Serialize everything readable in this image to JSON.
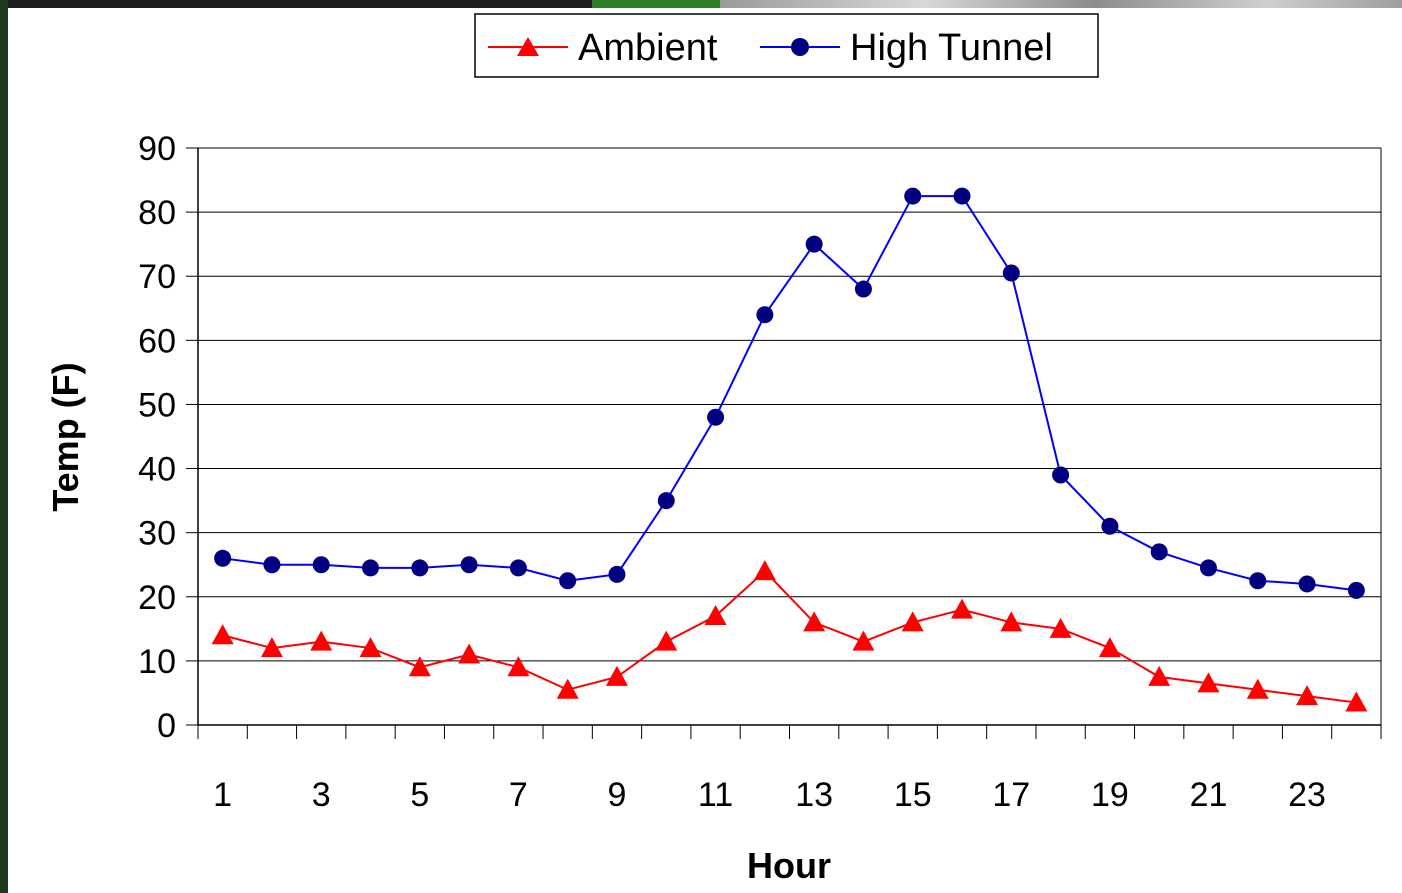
{
  "chart_data": {
    "type": "line",
    "xlabel": "Hour",
    "ylabel": "Temp (F)",
    "x": [
      1,
      2,
      3,
      4,
      5,
      6,
      7,
      8,
      9,
      10,
      11,
      12,
      13,
      14,
      15,
      16,
      17,
      18,
      19,
      20,
      21,
      22,
      23,
      24
    ],
    "x_tick_labels": [
      "1",
      "3",
      "5",
      "7",
      "9",
      "11",
      "13",
      "15",
      "17",
      "19",
      "21",
      "23"
    ],
    "ylim": [
      0,
      90
    ],
    "y_ticks": [
      0,
      10,
      20,
      30,
      40,
      50,
      60,
      70,
      80,
      90
    ],
    "grid": "horizontal",
    "legend_position": "top-center",
    "series": [
      {
        "name": "Ambient",
        "color": "#ff0000",
        "marker": "triangle",
        "values": [
          14,
          12,
          13,
          12,
          9,
          11,
          9,
          5.5,
          7.5,
          13,
          17,
          24,
          16,
          13,
          16,
          18,
          16,
          15,
          12,
          7.5,
          6.5,
          5.5,
          4.5,
          3.5
        ]
      },
      {
        "name": "High Tunnel",
        "color": "#0000ff",
        "marker_color": "#000080",
        "marker": "circle",
        "values": [
          26,
          25,
          25,
          24.5,
          24.5,
          25,
          24.5,
          22.5,
          23.5,
          35,
          48,
          64,
          75,
          68,
          82.5,
          82.5,
          70.5,
          39,
          31,
          27,
          24.5,
          22.5,
          22,
          21
        ]
      }
    ]
  }
}
